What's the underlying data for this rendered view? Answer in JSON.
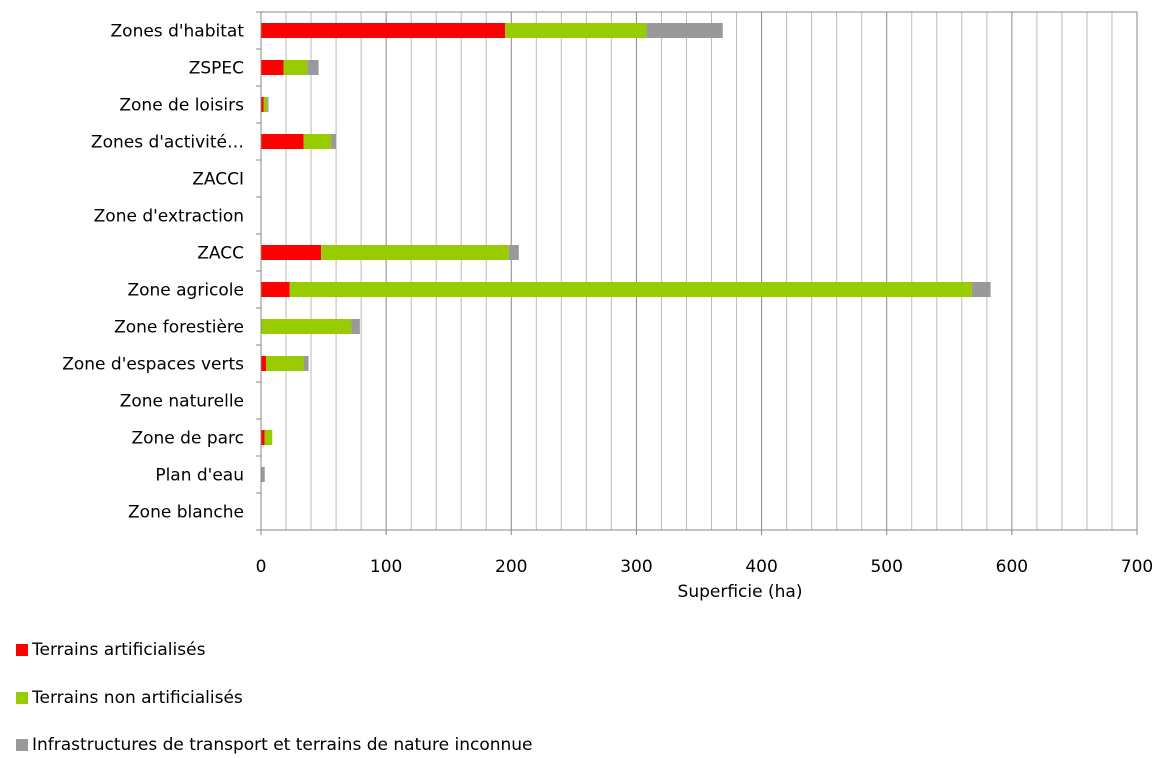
{
  "chart_data": {
    "type": "bar",
    "orientation": "horizontal",
    "stacked": true,
    "title": "",
    "xlabel": "Superficie (ha)",
    "ylabel": "",
    "xlim": [
      0,
      700
    ],
    "xticks": [
      0,
      100,
      200,
      300,
      400,
      500,
      600,
      700
    ],
    "grid": true,
    "legend_position": "bottom-left",
    "categories": [
      "Zones d'habitat",
      "ZSPEC",
      "Zone de loisirs",
      "Zones d'activité…",
      "ZACCI",
      "Zone d'extraction",
      "ZACC",
      "Zone agricole",
      "Zone forestière",
      "Zone d'espaces verts",
      "Zone naturelle",
      "Zone de parc",
      "Plan d'eau",
      "Zone blanche"
    ],
    "series": [
      {
        "name": "Terrains artificialisés",
        "color": "#ff0000",
        "values": [
          195,
          18,
          2,
          34,
          0,
          0,
          48,
          23,
          0,
          4,
          0,
          3,
          0,
          0
        ]
      },
      {
        "name": "Terrains non artificialisés",
        "color": "#99cc00",
        "values": [
          113,
          19,
          3,
          22,
          0,
          0,
          150,
          545,
          72,
          30,
          0,
          6,
          0,
          0
        ]
      },
      {
        "name": "Infrastructures de transport et terrains de nature inconnue",
        "color": "#999999",
        "values": [
          61,
          9,
          1,
          4,
          0,
          0,
          8,
          15,
          7,
          4,
          0,
          0,
          3,
          0
        ]
      }
    ]
  }
}
